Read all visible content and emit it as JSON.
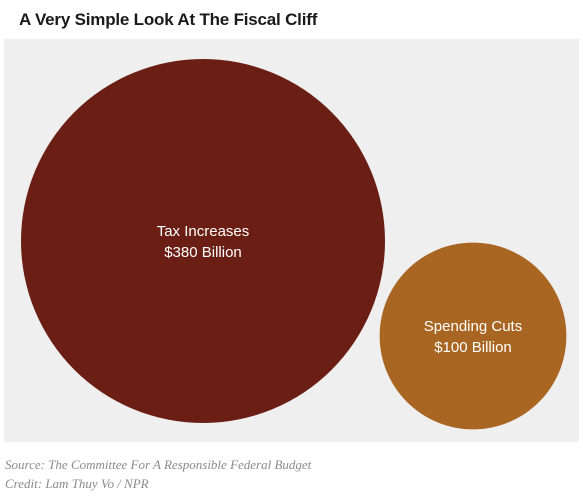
{
  "title": "A Very Simple Look At The Fiscal Cliff",
  "chart_data": {
    "type": "bubble",
    "title": "A Very Simple Look At The Fiscal Cliff",
    "unit": "Billion",
    "bubbles": [
      {
        "label": "Tax Increases",
        "value_text": "$380 Billion",
        "value": 380,
        "color": "#6b1f14"
      },
      {
        "label": "Spending Cuts",
        "value_text": "$100 Billion",
        "value": 100,
        "color": "#a96622"
      }
    ],
    "background": "#efefef"
  },
  "source": "Source: The Committee For A Responsible Federal Budget",
  "credit": "Credit: Lam Thuy Vo / NPR"
}
